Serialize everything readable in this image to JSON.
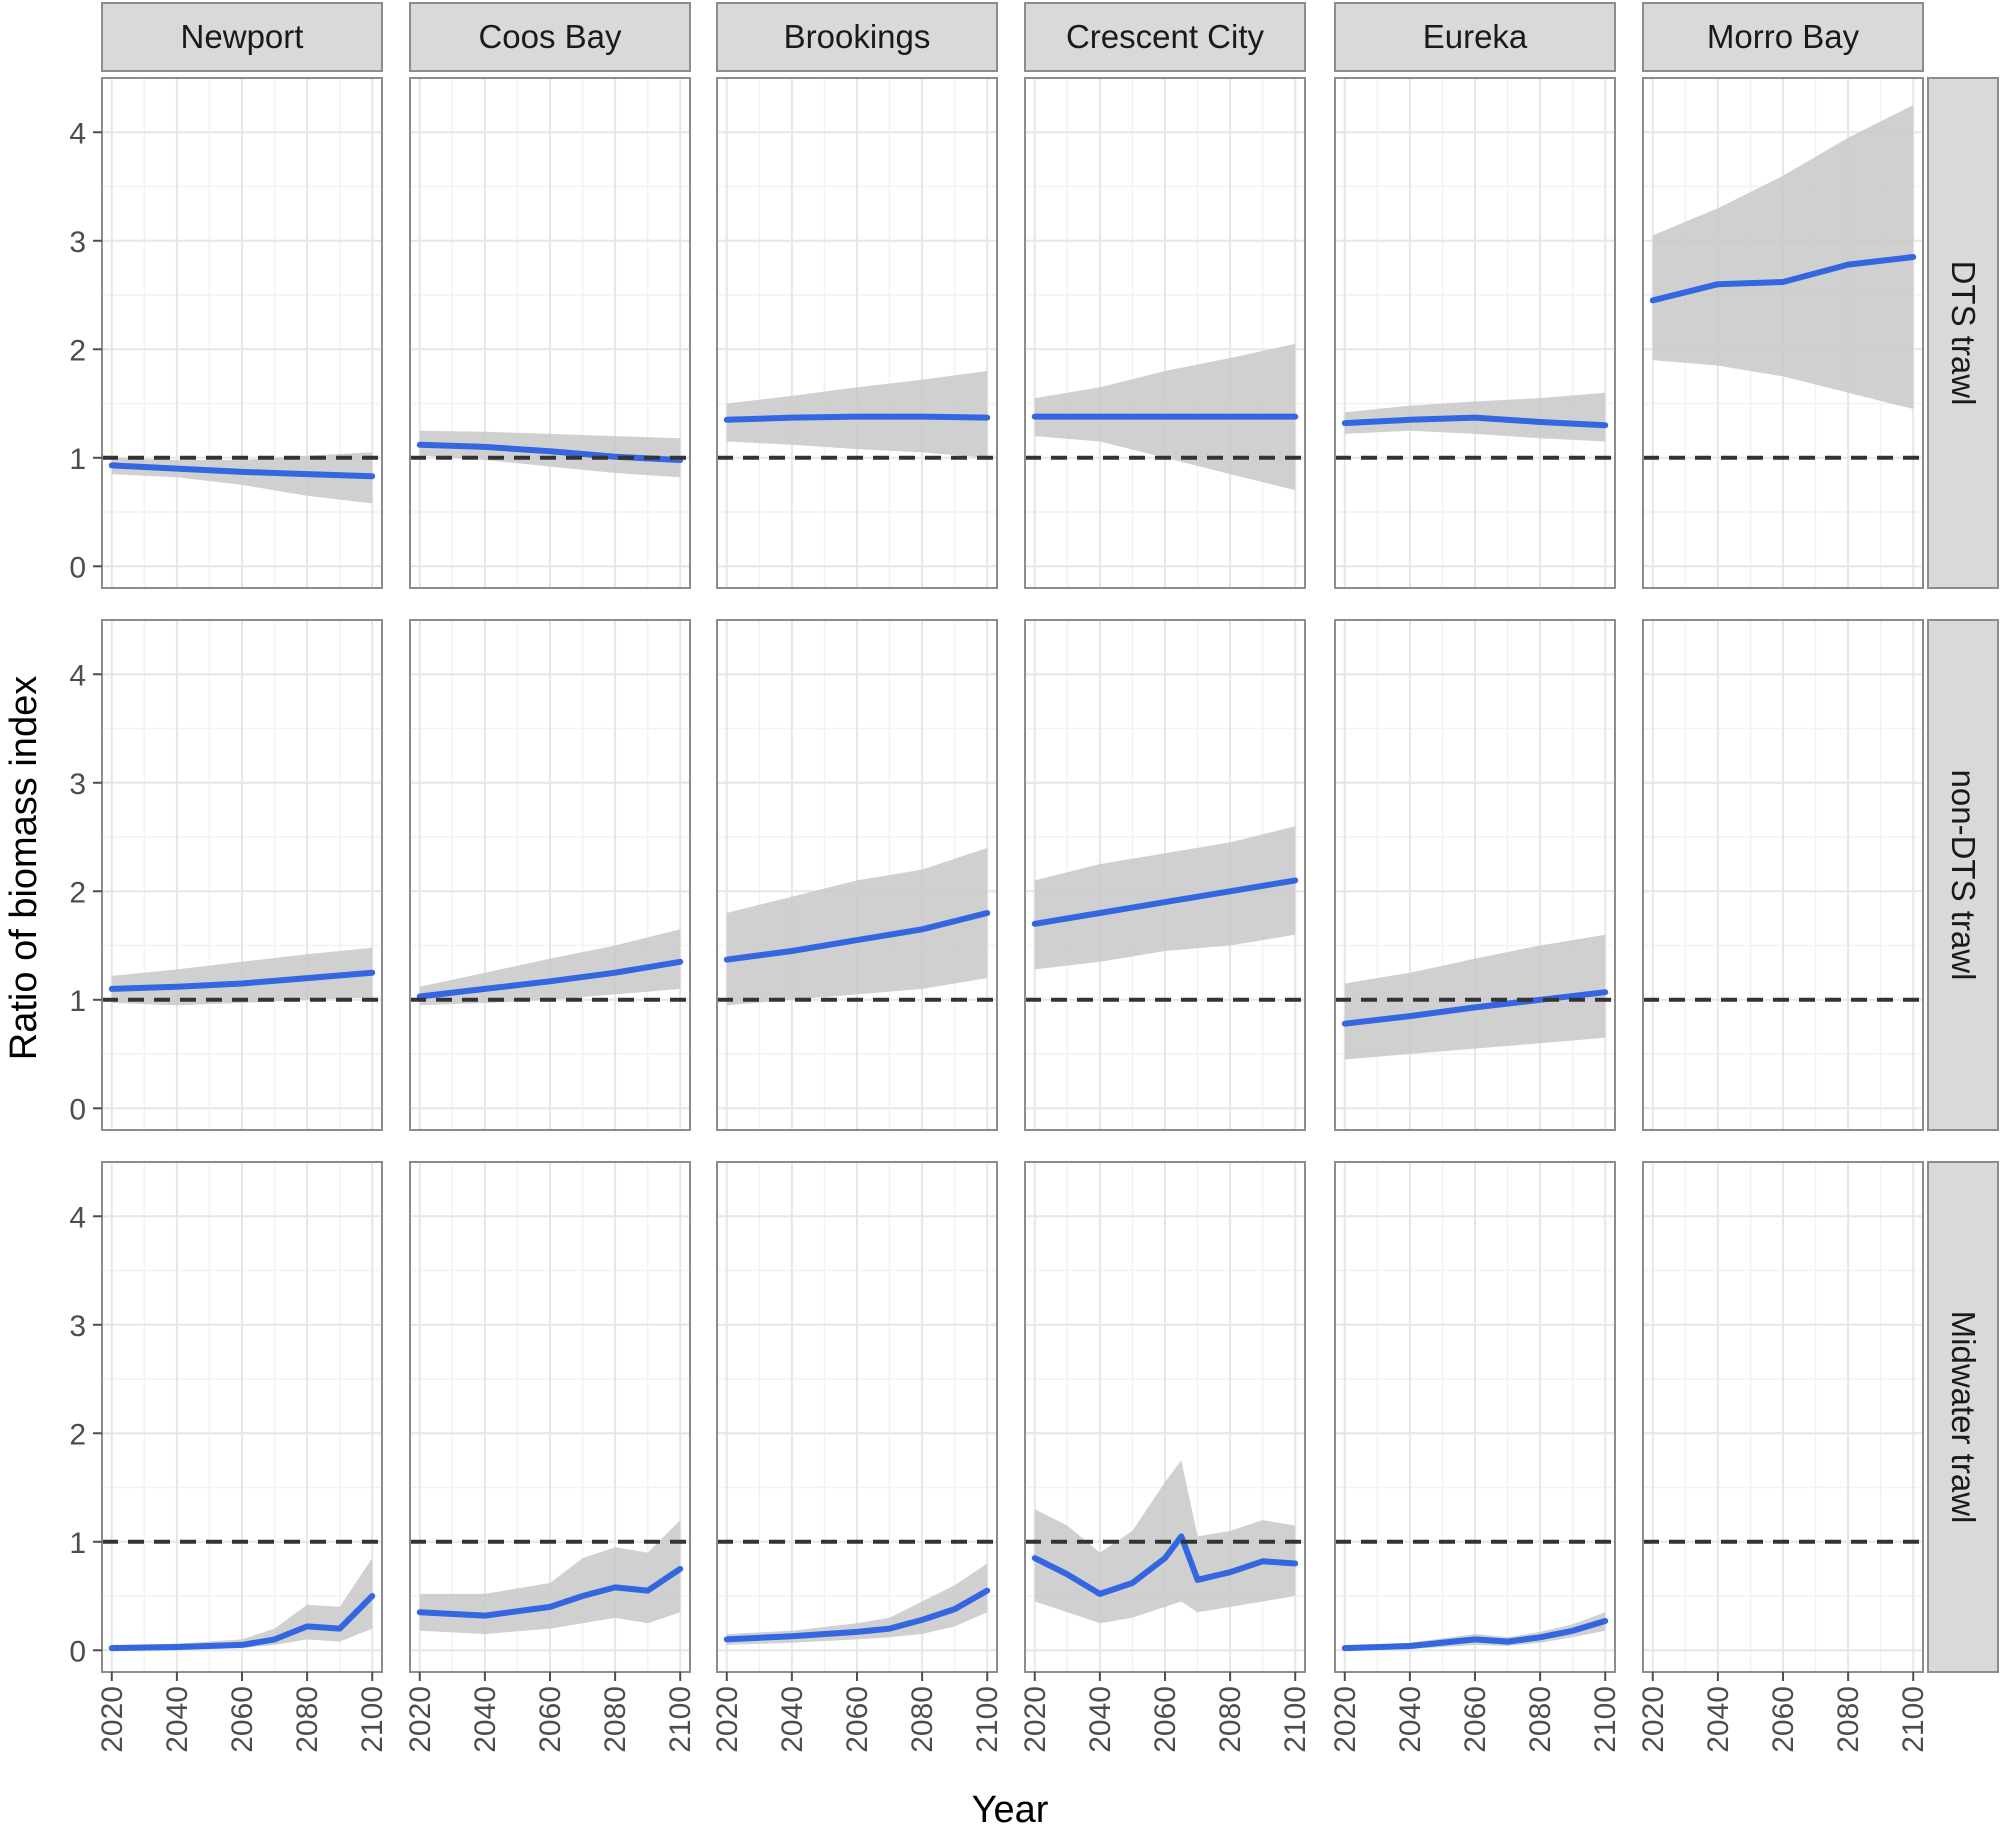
{
  "chart_data": {
    "type": "line",
    "xlabel": "Year",
    "ylabel": "Ratio of biomass index",
    "xlim": [
      2017,
      2103
    ],
    "ylim": [
      -0.2,
      4.5
    ],
    "x_ticks": [
      2020,
      2040,
      2060,
      2080,
      2100
    ],
    "y_ticks": [
      0,
      1,
      2,
      3,
      4
    ],
    "reference_line": 1,
    "columns": [
      "Newport",
      "Coos Bay",
      "Brookings",
      "Crescent City",
      "Eureka",
      "Morro Bay"
    ],
    "rows": [
      "DTS trawl",
      "non-DTS trawl",
      "Midwater trawl"
    ],
    "grid": true,
    "colors": {
      "smooth": "#3366e0",
      "observed": "#1a1a1a",
      "ribbon": "#c8c8c8",
      "reference": "#333333",
      "strip_fill": "#d9d9d9",
      "panel_border": "#8c8c8c",
      "grid_major": "#e6e6e6",
      "grid_minor": "#f2f2f2"
    },
    "panels": [
      {
        "row": "DTS trawl",
        "column": "Newport",
        "x": [
          2020,
          2040,
          2060,
          2080,
          2100
        ],
        "smooth": [
          0.93,
          0.9,
          0.87,
          0.85,
          0.83
        ],
        "lower": [
          0.85,
          0.82,
          0.75,
          0.65,
          0.58
        ],
        "upper": [
          1.0,
          0.98,
          0.98,
          1.02,
          1.05
        ]
      },
      {
        "row": "DTS trawl",
        "column": "Coos Bay",
        "x": [
          2020,
          2040,
          2060,
          2080,
          2100
        ],
        "smooth": [
          1.12,
          1.1,
          1.06,
          1.01,
          0.98
        ],
        "lower": [
          1.02,
          0.98,
          0.92,
          0.86,
          0.82
        ],
        "upper": [
          1.25,
          1.24,
          1.22,
          1.2,
          1.18
        ]
      },
      {
        "row": "DTS trawl",
        "column": "Brookings",
        "x": [
          2020,
          2040,
          2060,
          2080,
          2100
        ],
        "smooth": [
          1.35,
          1.37,
          1.38,
          1.38,
          1.37
        ],
        "lower": [
          1.15,
          1.12,
          1.08,
          1.05,
          1.0
        ],
        "upper": [
          1.5,
          1.57,
          1.65,
          1.72,
          1.8
        ]
      },
      {
        "row": "DTS trawl",
        "column": "Crescent City",
        "x": [
          2020,
          2040,
          2060,
          2080,
          2100
        ],
        "smooth": [
          1.38,
          1.38,
          1.38,
          1.38,
          1.38
        ],
        "lower": [
          1.2,
          1.15,
          1.0,
          0.85,
          0.7
        ],
        "upper": [
          1.55,
          1.65,
          1.8,
          1.92,
          2.05
        ]
      },
      {
        "row": "DTS trawl",
        "column": "Eureka",
        "x": [
          2020,
          2040,
          2060,
          2080,
          2100
        ],
        "smooth": [
          1.32,
          1.35,
          1.37,
          1.33,
          1.3
        ],
        "lower": [
          1.22,
          1.25,
          1.22,
          1.18,
          1.15
        ],
        "upper": [
          1.42,
          1.48,
          1.52,
          1.55,
          1.6
        ]
      },
      {
        "row": "DTS trawl",
        "column": "Morro Bay",
        "x": [
          2020,
          2040,
          2060,
          2080,
          2100
        ],
        "smooth": [
          2.45,
          2.6,
          2.62,
          2.78,
          2.85
        ],
        "lower": [
          1.9,
          1.85,
          1.75,
          1.6,
          1.45
        ],
        "upper": [
          3.05,
          3.3,
          3.6,
          3.95,
          4.25
        ]
      },
      {
        "row": "non-DTS trawl",
        "column": "Newport",
        "x": [
          2020,
          2040,
          2060,
          2080,
          2100
        ],
        "smooth": [
          1.1,
          1.12,
          1.15,
          1.2,
          1.25
        ],
        "lower": [
          0.97,
          0.95,
          0.97,
          1.0,
          1.02
        ],
        "upper": [
          1.22,
          1.28,
          1.35,
          1.42,
          1.48
        ]
      },
      {
        "row": "non-DTS trawl",
        "column": "Coos Bay",
        "x": [
          2020,
          2040,
          2060,
          2080,
          2100
        ],
        "smooth": [
          1.03,
          1.1,
          1.17,
          1.25,
          1.35
        ],
        "lower": [
          0.95,
          0.97,
          1.0,
          1.05,
          1.1
        ],
        "upper": [
          1.12,
          1.25,
          1.38,
          1.5,
          1.65
        ]
      },
      {
        "row": "non-DTS trawl",
        "column": "Brookings",
        "x": [
          2020,
          2040,
          2060,
          2080,
          2100
        ],
        "smooth": [
          1.37,
          1.45,
          1.55,
          1.65,
          1.8
        ],
        "lower": [
          0.95,
          1.0,
          1.05,
          1.1,
          1.2
        ],
        "upper": [
          1.8,
          1.95,
          2.1,
          2.2,
          2.4
        ]
      },
      {
        "row": "non-DTS trawl",
        "column": "Crescent City",
        "x": [
          2020,
          2040,
          2060,
          2080,
          2100
        ],
        "smooth": [
          1.7,
          1.8,
          1.9,
          2.0,
          2.1
        ],
        "lower": [
          1.28,
          1.35,
          1.45,
          1.5,
          1.6
        ],
        "upper": [
          2.1,
          2.25,
          2.35,
          2.45,
          2.6
        ]
      },
      {
        "row": "non-DTS trawl",
        "column": "Eureka",
        "x": [
          2020,
          2040,
          2060,
          2080,
          2100
        ],
        "smooth": [
          0.78,
          0.85,
          0.93,
          1.0,
          1.07
        ],
        "lower": [
          0.45,
          0.5,
          0.55,
          0.6,
          0.65
        ],
        "upper": [
          1.15,
          1.25,
          1.38,
          1.5,
          1.6
        ]
      },
      {
        "row": "Midwater trawl",
        "column": "Newport",
        "x": [
          2020,
          2040,
          2060,
          2070,
          2080,
          2090,
          2100
        ],
        "smooth": [
          0.02,
          0.03,
          0.05,
          0.1,
          0.22,
          0.2,
          0.5
        ],
        "lower": [
          0.0,
          0.0,
          0.02,
          0.05,
          0.1,
          0.08,
          0.2
        ],
        "upper": [
          0.05,
          0.06,
          0.1,
          0.2,
          0.42,
          0.4,
          0.85
        ]
      },
      {
        "row": "Midwater trawl",
        "column": "Coos Bay",
        "x": [
          2020,
          2040,
          2060,
          2070,
          2080,
          2090,
          2100
        ],
        "smooth": [
          0.35,
          0.32,
          0.4,
          0.5,
          0.58,
          0.55,
          0.75
        ],
        "lower": [
          0.18,
          0.15,
          0.2,
          0.25,
          0.3,
          0.25,
          0.35
        ],
        "upper": [
          0.52,
          0.52,
          0.62,
          0.85,
          0.95,
          0.9,
          1.2
        ]
      },
      {
        "row": "Midwater trawl",
        "column": "Brookings",
        "x": [
          2020,
          2040,
          2060,
          2070,
          2080,
          2090,
          2100
        ],
        "smooth": [
          0.1,
          0.13,
          0.17,
          0.2,
          0.28,
          0.38,
          0.55
        ],
        "lower": [
          0.05,
          0.07,
          0.1,
          0.12,
          0.15,
          0.22,
          0.35
        ],
        "upper": [
          0.15,
          0.18,
          0.25,
          0.3,
          0.45,
          0.6,
          0.8
        ]
      },
      {
        "row": "Midwater trawl",
        "column": "Crescent City",
        "x": [
          2020,
          2030,
          2040,
          2050,
          2060,
          2065,
          2070,
          2080,
          2090,
          2100
        ],
        "smooth": [
          0.85,
          0.7,
          0.52,
          0.62,
          0.85,
          1.05,
          0.65,
          0.72,
          0.82,
          0.8
        ],
        "lower": [
          0.45,
          0.35,
          0.25,
          0.3,
          0.4,
          0.45,
          0.35,
          0.4,
          0.45,
          0.5
        ],
        "upper": [
          1.3,
          1.15,
          0.9,
          1.1,
          1.55,
          1.75,
          1.05,
          1.1,
          1.2,
          1.15
        ]
      },
      {
        "row": "Midwater trawl",
        "column": "Eureka",
        "x": [
          2020,
          2040,
          2060,
          2070,
          2080,
          2090,
          2100
        ],
        "smooth": [
          0.02,
          0.04,
          0.1,
          0.08,
          0.12,
          0.18,
          0.27
        ],
        "lower": [
          0.0,
          0.01,
          0.05,
          0.04,
          0.07,
          0.12,
          0.18
        ],
        "upper": [
          0.04,
          0.07,
          0.15,
          0.12,
          0.17,
          0.24,
          0.35
        ]
      }
    ]
  }
}
